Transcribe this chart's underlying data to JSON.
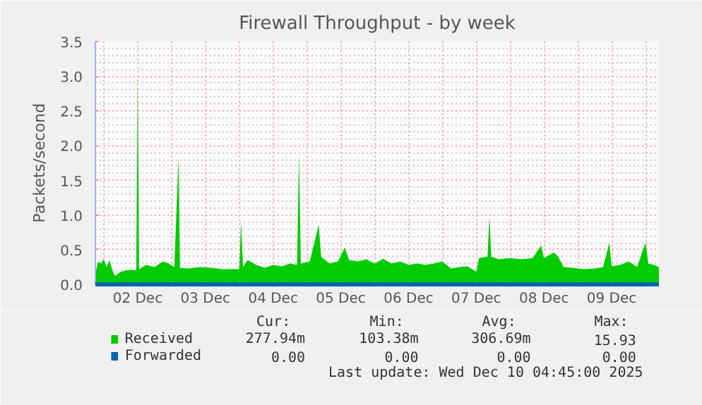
{
  "chart_data": {
    "type": "area",
    "title": "Firewall Throughput - by week",
    "ylabel": "Packets/second",
    "xlim": [
      "2025-12-01T21:00",
      "2025-12-10T04:45"
    ],
    "ylim": [
      0,
      3.5
    ],
    "yticks": [
      {
        "value": 0,
        "label": "0.0"
      },
      0.5,
      {
        "value": 1,
        "label": "1.0"
      },
      1.5,
      {
        "value": 2,
        "label": "2.0"
      },
      2.5,
      {
        "value": 3,
        "label": "3.0"
      },
      3.5
    ],
    "xticks": [
      {
        "value": "2025-12-02T00:00",
        "label": null
      },
      {
        "value": "2025-12-02T12:00",
        "label": "02 Dec"
      },
      {
        "value": "2025-12-03T00:00",
        "label": null
      },
      {
        "value": "2025-12-03T12:00",
        "label": "03 Dec"
      },
      {
        "value": "2025-12-04T00:00",
        "label": null
      },
      {
        "value": "2025-12-04T12:00",
        "label": "04 Dec"
      },
      {
        "value": "2025-12-05T00:00",
        "label": null
      },
      {
        "value": "2025-12-05T12:00",
        "label": "05 Dec"
      },
      {
        "value": "2025-12-06T00:00",
        "label": null
      },
      {
        "value": "2025-12-06T12:00",
        "label": "06 Dec"
      },
      {
        "value": "2025-12-07T00:00",
        "label": null
      },
      {
        "value": "2025-12-07T12:00",
        "label": "07 Dec"
      },
      {
        "value": "2025-12-08T00:00",
        "label": null
      },
      {
        "value": "2025-12-08T12:00",
        "label": "08 Dec"
      },
      {
        "value": "2025-12-09T00:00",
        "label": null
      },
      {
        "value": "2025-12-09T12:00",
        "label": "09 Dec"
      },
      {
        "value": "2025-12-10T00:00",
        "label": null
      }
    ],
    "grid": true,
    "legend": "bottom",
    "series": [
      {
        "name": "Forwarded",
        "type": "line",
        "color": "#0066b3",
        "x": [
          "2025-12-01T21:00",
          "2025-12-10T04:45"
        ],
        "values": [
          0,
          0
        ]
      },
      {
        "name": "Received",
        "color": "#00cc00",
        "x": [
          "2025-12-01T21:00",
          "2025-12-01T22:00",
          "2025-12-01T23:00",
          "2025-12-02T00:00",
          "2025-12-02T01:00",
          "2025-12-02T02:00",
          "2025-12-02T03:00",
          "2025-12-02T04:00",
          "2025-12-02T06:00",
          "2025-12-02T08:00",
          "2025-12-02T10:00",
          "2025-12-02T11:30",
          "2025-12-02T12:00",
          "2025-12-02T12:30",
          "2025-12-02T15:00",
          "2025-12-02T18:00",
          "2025-12-02T21:00",
          "2025-12-02T23:00",
          "2025-12-03T01:00",
          "2025-12-03T02:30",
          "2025-12-03T03:00",
          "2025-12-03T06:00",
          "2025-12-03T10:00",
          "2025-12-03T14:00",
          "2025-12-03T18:00",
          "2025-12-03T21:00",
          "2025-12-04T00:00",
          "2025-12-04T00:40",
          "2025-12-04T01:20",
          "2025-12-04T03:00",
          "2025-12-04T06:00",
          "2025-12-04T09:00",
          "2025-12-04T12:00",
          "2025-12-04T15:00",
          "2025-12-04T18:00",
          "2025-12-04T20:30",
          "2025-12-04T21:10",
          "2025-12-04T21:50",
          "2025-12-05T01:00",
          "2025-12-05T04:10",
          "2025-12-05T05:00",
          "2025-12-05T08:00",
          "2025-12-05T11:00",
          "2025-12-05T13:20",
          "2025-12-05T15:00",
          "2025-12-05T18:00",
          "2025-12-05T21:00",
          "2025-12-06T00:00",
          "2025-12-06T03:00",
          "2025-12-06T06:00",
          "2025-12-06T09:00",
          "2025-12-06T12:00",
          "2025-12-06T15:00",
          "2025-12-06T18:00",
          "2025-12-06T21:00",
          "2025-12-07T00:00",
          "2025-12-07T03:00",
          "2025-12-07T06:00",
          "2025-12-07T09:00",
          "2025-12-07T12:00",
          "2025-12-07T13:00",
          "2025-12-07T16:00",
          "2025-12-07T16:40",
          "2025-12-07T17:20",
          "2025-12-07T20:00",
          "2025-12-08T00:00",
          "2025-12-08T04:00",
          "2025-12-08T08:00",
          "2025-12-08T11:00",
          "2025-12-08T12:00",
          "2025-12-08T15:30",
          "2025-12-08T17:00",
          "2025-12-08T19:00",
          "2025-12-08T22:00",
          "2025-12-09T02:00",
          "2025-12-09T06:00",
          "2025-12-09T09:00",
          "2025-12-09T11:10",
          "2025-12-09T12:00",
          "2025-12-09T15:00",
          "2025-12-09T18:00",
          "2025-12-09T21:00",
          "2025-12-10T00:00",
          "2025-12-10T01:00",
          "2025-12-10T03:00",
          "2025-12-10T04:45"
        ],
        "values": [
          0.15,
          0.33,
          0.3,
          0.36,
          0.25,
          0.35,
          0.2,
          0.12,
          0.18,
          0.2,
          0.21,
          0.2,
          2.98,
          0.22,
          0.28,
          0.25,
          0.33,
          0.3,
          0.25,
          1.84,
          0.24,
          0.23,
          0.25,
          0.24,
          0.22,
          0.22,
          0.22,
          0.9,
          0.25,
          0.35,
          0.28,
          0.24,
          0.28,
          0.26,
          0.3,
          0.28,
          1.87,
          0.3,
          0.33,
          0.86,
          0.4,
          0.3,
          0.33,
          0.53,
          0.35,
          0.33,
          0.36,
          0.3,
          0.37,
          0.3,
          0.33,
          0.28,
          0.3,
          0.28,
          0.3,
          0.33,
          0.23,
          0.25,
          0.26,
          0.18,
          0.38,
          0.4,
          0.97,
          0.4,
          0.36,
          0.38,
          0.36,
          0.38,
          0.56,
          0.38,
          0.46,
          0.4,
          0.25,
          0.24,
          0.22,
          0.23,
          0.25,
          0.6,
          0.26,
          0.28,
          0.33,
          0.25,
          0.6,
          0.3,
          0.28,
          0.25
        ]
      }
    ],
    "annotations": [
      "Cur:",
      "Min:",
      "Avg:",
      "Max:",
      "277.94m",
      "103.38m",
      "306.69m",
      "15.93",
      "0.00",
      "0.00",
      "0.00",
      "0.00",
      "Last update: Wed Dec 10 04:45:00 2025"
    ]
  }
}
